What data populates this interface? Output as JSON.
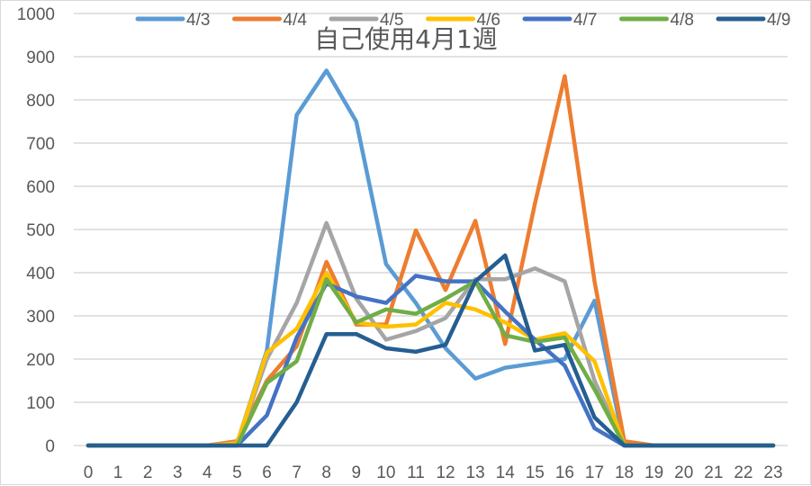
{
  "chart_data": {
    "type": "line",
    "title": "自己使用4月1週",
    "xlabel": "",
    "ylabel": "",
    "x": [
      0,
      1,
      2,
      3,
      4,
      5,
      6,
      7,
      8,
      9,
      10,
      11,
      12,
      13,
      14,
      15,
      16,
      17,
      18,
      19,
      20,
      21,
      22,
      23
    ],
    "categories": [
      "0",
      "1",
      "2",
      "3",
      "4",
      "5",
      "6",
      "7",
      "8",
      "9",
      "10",
      "11",
      "12",
      "13",
      "14",
      "15",
      "16",
      "17",
      "18",
      "19",
      "20",
      "21",
      "22",
      "23"
    ],
    "ylim": [
      0,
      1000
    ],
    "yticks": [
      0,
      100,
      200,
      300,
      400,
      500,
      600,
      700,
      800,
      900,
      1000
    ],
    "grid": true,
    "legend_position": "top",
    "series": [
      {
        "name": "4/3",
        "color": "#5B9BD5",
        "values": [
          0,
          0,
          0,
          0,
          0,
          5,
          220,
          765,
          868,
          750,
          420,
          330,
          225,
          155,
          180,
          190,
          200,
          335,
          0,
          0,
          0,
          0,
          0,
          0
        ]
      },
      {
        "name": "4/4",
        "color": "#ED7D31",
        "values": [
          0,
          0,
          0,
          0,
          0,
          10,
          150,
          230,
          425,
          280,
          280,
          498,
          360,
          520,
          235,
          560,
          855,
          380,
          10,
          0,
          0,
          0,
          0,
          0
        ]
      },
      {
        "name": "4/5",
        "color": "#A5A5A5",
        "values": [
          0,
          0,
          0,
          0,
          0,
          5,
          200,
          330,
          515,
          340,
          245,
          265,
          295,
          385,
          385,
          410,
          380,
          150,
          0,
          0,
          0,
          0,
          0,
          0
        ]
      },
      {
        "name": "4/6",
        "color": "#FFC000",
        "values": [
          0,
          0,
          0,
          0,
          0,
          5,
          215,
          270,
          400,
          285,
          275,
          280,
          330,
          315,
          285,
          245,
          260,
          195,
          0,
          0,
          0,
          0,
          0,
          0
        ]
      },
      {
        "name": "4/7",
        "color": "#4472C4",
        "values": [
          0,
          0,
          0,
          0,
          0,
          0,
          70,
          250,
          375,
          345,
          330,
          393,
          380,
          380,
          310,
          245,
          185,
          40,
          0,
          0,
          0,
          0,
          0,
          0
        ]
      },
      {
        "name": "4/8",
        "color": "#70AD47",
        "values": [
          0,
          0,
          0,
          0,
          0,
          0,
          145,
          195,
          385,
          285,
          315,
          305,
          340,
          380,
          255,
          240,
          250,
          130,
          0,
          0,
          0,
          0,
          0,
          0
        ]
      },
      {
        "name": "4/9",
        "color": "#255E91",
        "values": [
          0,
          0,
          0,
          0,
          0,
          0,
          0,
          100,
          258,
          258,
          225,
          217,
          233,
          380,
          440,
          220,
          233,
          65,
          0,
          0,
          0,
          0,
          0,
          0
        ]
      }
    ]
  },
  "colors": {
    "gridline": "#d9d9d9",
    "text": "#595959",
    "frame": "#d9d9d9"
  }
}
